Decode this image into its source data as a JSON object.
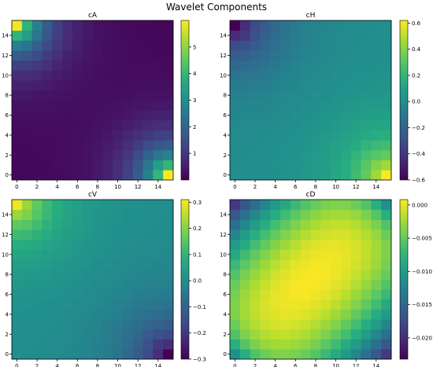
{
  "figure_title": "Wavelet Components",
  "chart_data": [
    {
      "type": "heatmap",
      "title": "cA",
      "x_ticks": [
        "0",
        "2",
        "4",
        "6",
        "8",
        "10",
        "12",
        "14"
      ],
      "y_ticks": [
        "0",
        "2",
        "4",
        "6",
        "8",
        "10",
        "12",
        "14"
      ],
      "grid_size": 16,
      "colormap": "viridis",
      "colorbar": {
        "min": 0.0,
        "max": 6.0,
        "ticks": [
          1,
          2,
          3,
          4,
          5
        ],
        "tick_labels": [
          "1",
          "2",
          "3",
          "4",
          "5"
        ]
      },
      "description_values": {
        "corner_top_left": 5.9,
        "corner_bottom_right": 6.0,
        "corner_top_right": 0.1,
        "corner_bottom_left": 0.1,
        "center": 0.1
      }
    },
    {
      "type": "heatmap",
      "title": "cH",
      "x_ticks": [
        "0",
        "2",
        "4",
        "6",
        "8",
        "10",
        "12",
        "14"
      ],
      "y_ticks": [
        "0",
        "2",
        "4",
        "6",
        "8",
        "10",
        "12",
        "14"
      ],
      "grid_size": 16,
      "colormap": "viridis",
      "colorbar": {
        "min": -0.6,
        "max": 0.62,
        "ticks": [
          -0.6,
          -0.4,
          -0.2,
          0.0,
          0.2,
          0.4,
          0.6
        ],
        "tick_labels": [
          "−0.6",
          "−0.4",
          "−0.2",
          "0.0",
          "0.2",
          "0.4",
          "0.6"
        ]
      },
      "description_values": {
        "corner_top_left": -0.6,
        "corner_bottom_right": 0.62,
        "corner_top_right": 0.0,
        "corner_bottom_left": 0.0,
        "center": 0.0
      }
    },
    {
      "type": "heatmap",
      "title": "cV",
      "x_ticks": [
        "0",
        "2",
        "4",
        "6",
        "8",
        "10",
        "12",
        "14"
      ],
      "y_ticks": [
        "0",
        "2",
        "4",
        "6",
        "8",
        "10",
        "12",
        "14"
      ],
      "grid_size": 16,
      "colormap": "viridis",
      "colorbar": {
        "min": -0.3,
        "max": 0.31,
        "ticks": [
          -0.3,
          -0.2,
          -0.1,
          0.0,
          0.1,
          0.2,
          0.3
        ],
        "tick_labels": [
          "−0.3",
          "−0.2",
          "−0.1",
          "0.0",
          "0.1",
          "0.2",
          "0.3"
        ]
      },
      "description_values": {
        "corner_top_left": 0.3,
        "corner_bottom_right": -0.3,
        "corner_top_right": 0.0,
        "corner_bottom_left": 0.0,
        "center": 0.0
      }
    },
    {
      "type": "heatmap",
      "title": "cD",
      "x_ticks": [
        "0",
        "2",
        "4",
        "6",
        "8",
        "10",
        "12",
        "14"
      ],
      "y_ticks": [
        "0",
        "2",
        "4",
        "6",
        "8",
        "10",
        "12",
        "14"
      ],
      "grid_size": 16,
      "colormap": "viridis",
      "colorbar": {
        "min": -0.0232,
        "max": 0.0008,
        "ticks": [
          -0.02,
          -0.015,
          -0.01,
          -0.005,
          0.0
        ],
        "tick_labels": [
          "−0.020",
          "−0.015",
          "−0.010",
          "−0.005",
          "0.000"
        ]
      },
      "description_values": {
        "corner_top_left": -0.0232,
        "corner_bottom_right": -0.0232,
        "diagonal_band": 0.0008,
        "corner_top_right": -0.012,
        "corner_bottom_left": -0.012
      }
    }
  ]
}
